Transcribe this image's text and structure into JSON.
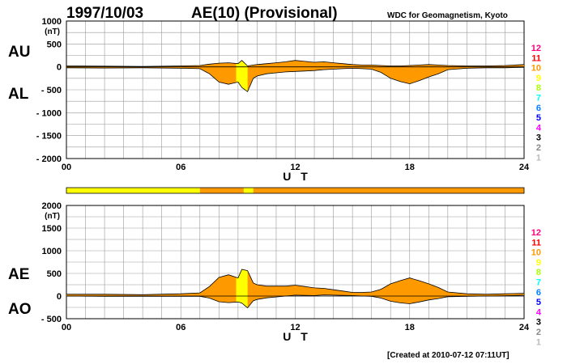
{
  "header": {
    "date": "1997/10/03",
    "title": "AE(10) (Provisional)",
    "source": "WDC for Geomagnetism, Kyoto",
    "footer": "[Created at 2010-07-12 07:11UT]"
  },
  "legend_scale": {
    "labels": [
      "12",
      "11",
      "10",
      "9",
      "8",
      "7",
      "6",
      "5",
      "4",
      "3",
      "2",
      "1"
    ],
    "colors": [
      "#ff0080",
      "#ff0000",
      "#ff9900",
      "#ffff00",
      "#aaff00",
      "#00ffff",
      "#0080ff",
      "#0000ff",
      "#ff00ff",
      "#000000",
      "#888888",
      "#bbbbbb"
    ]
  },
  "colors": {
    "fill_main": "#ff9900",
    "fill_low": "#ffff00",
    "bar_low": "#ffff00",
    "bar_main": "#ff9900",
    "grid": "#999999"
  },
  "chart_data": [
    {
      "type": "area",
      "name": "AU-AL",
      "labels": [
        "AU",
        "AL"
      ],
      "xlabel": "U T",
      "ylabel_unit": "(nT)",
      "xlim": [
        0,
        24
      ],
      "ylim": [
        -2000,
        1000
      ],
      "x_ticks": [
        "00",
        "06",
        "12",
        "18",
        "24"
      ],
      "y_ticks": [
        "1000",
        "500",
        "0",
        "- 500",
        "- 1000",
        "- 1500",
        "- 2000"
      ],
      "upper": {
        "x": [
          0,
          2,
          4,
          6,
          7,
          7.5,
          8,
          8.5,
          9,
          9.2,
          9.5,
          9.8,
          10,
          10.5,
          11,
          11.5,
          12,
          12.5,
          13,
          13.5,
          14,
          14.5,
          15,
          15.5,
          16,
          16.5,
          17,
          17.5,
          18,
          18.5,
          19,
          19.5,
          20,
          21,
          22,
          23,
          24
        ],
        "y": [
          20,
          15,
          10,
          20,
          30,
          60,
          80,
          90,
          70,
          140,
          20,
          40,
          50,
          70,
          90,
          110,
          140,
          120,
          100,
          110,
          90,
          70,
          50,
          40,
          40,
          30,
          20,
          20,
          30,
          40,
          50,
          40,
          30,
          20,
          20,
          30,
          50
        ]
      },
      "lower": {
        "x": [
          0,
          2,
          4,
          6,
          7,
          7.5,
          8,
          8.5,
          9,
          9.2,
          9.5,
          9.8,
          10,
          10.5,
          11,
          11.5,
          12,
          12.5,
          13,
          13.5,
          14,
          14.5,
          15,
          15.5,
          16,
          16.5,
          17,
          17.5,
          18,
          18.5,
          19,
          19.5,
          20,
          21,
          22,
          23,
          24
        ],
        "y": [
          -20,
          -25,
          -20,
          -30,
          -40,
          -150,
          -330,
          -380,
          -330,
          -450,
          -540,
          -250,
          -200,
          -150,
          -130,
          -110,
          -100,
          -90,
          -80,
          -60,
          -50,
          -40,
          -30,
          -40,
          -50,
          -120,
          -250,
          -320,
          -370,
          -300,
          -220,
          -150,
          -60,
          -30,
          -20,
          -20,
          -10
        ]
      },
      "low_activity_span": [
        8.9,
        9.5
      ]
    },
    {
      "type": "area",
      "name": "AE-AO",
      "labels": [
        "AE",
        "AO"
      ],
      "xlabel": "U T",
      "ylabel_unit": "(nT)",
      "xlim": [
        0,
        24
      ],
      "ylim": [
        -500,
        2000
      ],
      "x_ticks": [
        "00",
        "06",
        "12",
        "18",
        "24"
      ],
      "y_ticks": [
        "2000",
        "1500",
        "1000",
        "500",
        "0",
        "- 500"
      ],
      "upper": {
        "x": [
          0,
          2,
          4,
          6,
          7,
          7.5,
          8,
          8.5,
          9,
          9.2,
          9.5,
          9.8,
          10,
          10.5,
          11,
          11.5,
          12,
          12.5,
          13,
          13.5,
          14,
          14.5,
          15,
          15.5,
          16,
          16.5,
          17,
          17.5,
          18,
          18.5,
          19,
          19.5,
          20,
          21,
          22,
          23,
          24
        ],
        "y": [
          40,
          40,
          30,
          50,
          70,
          210,
          410,
          470,
          400,
          590,
          560,
          290,
          250,
          220,
          220,
          220,
          240,
          210,
          180,
          170,
          140,
          110,
          80,
          80,
          90,
          150,
          270,
          340,
          400,
          340,
          270,
          190,
          90,
          50,
          40,
          50,
          60
        ]
      },
      "lower": {
        "x": [
          0,
          2,
          4,
          6,
          7,
          7.5,
          8,
          8.5,
          9,
          9.2,
          9.5,
          9.8,
          10,
          10.5,
          11,
          11.5,
          12,
          12.5,
          13,
          13.5,
          14,
          14.5,
          15,
          15.5,
          16,
          16.5,
          17,
          17.5,
          18,
          18.5,
          19,
          19.5,
          20,
          21,
          22,
          23,
          24
        ],
        "y": [
          0,
          -5,
          -5,
          -5,
          -5,
          -45,
          -125,
          -145,
          -130,
          -155,
          -260,
          -105,
          -75,
          -40,
          -20,
          0,
          20,
          15,
          10,
          25,
          20,
          15,
          10,
          0,
          -5,
          -45,
          -115,
          -150,
          -170,
          -130,
          -85,
          -55,
          -15,
          -5,
          0,
          5,
          20
        ]
      },
      "low_activity_span": [
        8.9,
        9.5
      ]
    }
  ],
  "activity_bar": {
    "segments": [
      {
        "start": 0,
        "end": 7,
        "level": "low"
      },
      {
        "start": 7,
        "end": 9.3,
        "level": "main"
      },
      {
        "start": 9.3,
        "end": 9.8,
        "level": "low"
      },
      {
        "start": 9.8,
        "end": 24,
        "level": "main"
      }
    ]
  }
}
